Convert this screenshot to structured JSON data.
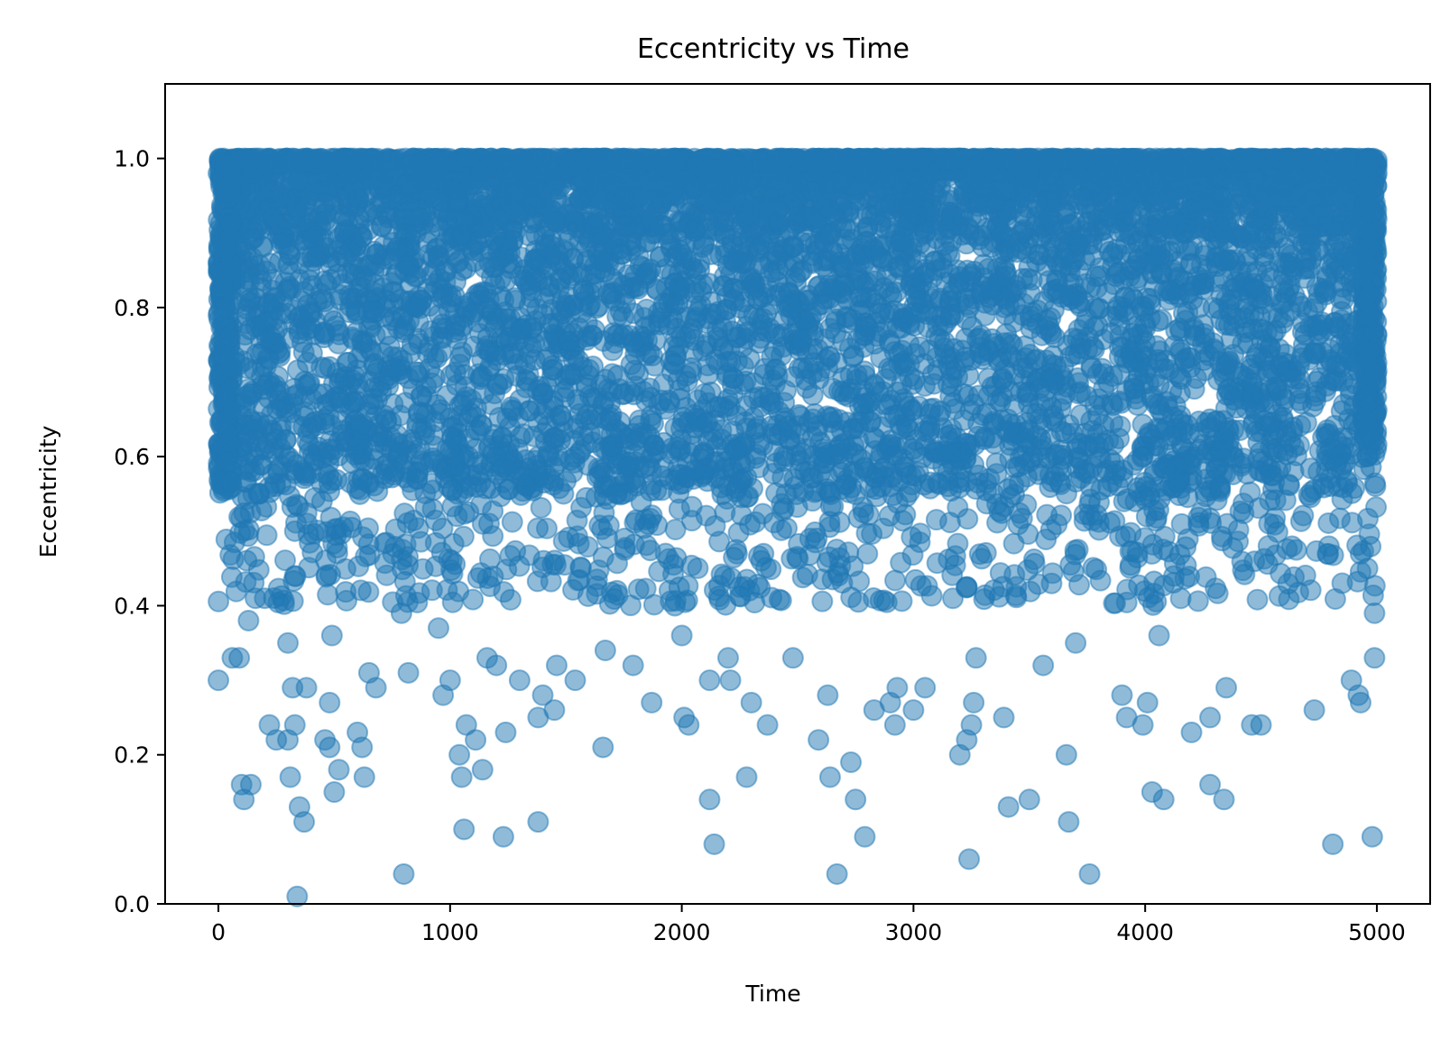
{
  "chart_data": {
    "type": "scatter",
    "title": "Eccentricity vs Time",
    "xlabel": "Time",
    "ylabel": "Eccentricity",
    "xlim": [
      -230,
      5230
    ],
    "ylim": [
      0.0,
      1.1
    ],
    "xticks": [
      0,
      1000,
      2000,
      3000,
      4000,
      5000
    ],
    "xtick_labels": [
      "0",
      "1000",
      "2000",
      "3000",
      "4000",
      "5000"
    ],
    "yticks": [
      0.0,
      0.2,
      0.4,
      0.6,
      0.8,
      1.0
    ],
    "ytick_labels": [
      "0.0",
      "0.2",
      "0.4",
      "0.6",
      "0.8",
      "1.0"
    ],
    "grid": false,
    "marker_color": "#1f77b4",
    "marker_alpha": 0.5,
    "series": [
      {
        "x": [
          0,
          100,
          200,
          300,
          400,
          500,
          600,
          700,
          800,
          900,
          1000,
          1100,
          1200,
          1300,
          1400,
          1500,
          1600,
          1700,
          1800,
          1900,
          2000,
          2100,
          2200,
          2300,
          2400,
          2500,
          2600,
          2700,
          2800,
          2900,
          3000,
          3100,
          3200,
          3300,
          3400,
          3500,
          3600,
          3700,
          3800,
          3900,
          4000,
          4100,
          4200,
          4300,
          4400,
          4500,
          4600,
          4700,
          4800,
          4900,
          5000,
          20,
          150,
          330,
          520,
          760,
          1030,
          1380,
          1720,
          2050,
          2450,
          2800,
          3150,
          3480,
          3800,
          4150,
          4500,
          4830,
          4990
        ],
        "y": [
          0.98,
          0.97,
          0.95,
          0.93,
          0.99,
          0.96,
          0.94,
          0.97,
          0.98,
          0.95,
          0.96,
          0.93,
          0.99,
          0.97,
          0.94,
          0.98,
          0.95,
          0.96,
          0.97,
          0.93,
          0.98,
          0.94,
          0.96,
          0.99,
          0.95,
          0.97,
          0.93,
          0.96,
          0.98,
          0.94,
          0.97,
          0.95,
          0.99,
          0.96,
          0.93,
          0.98,
          0.94,
          0.97,
          0.95,
          0.96,
          0.99,
          0.93,
          0.97,
          0.94,
          0.98,
          0.95,
          0.96,
          0.97,
          0.93,
          0.99,
          0.98,
          0.6,
          0.55,
          0.5,
          0.62,
          0.58,
          0.52,
          0.6,
          0.55,
          0.57,
          0.6,
          0.58,
          0.56,
          0.59,
          0.6,
          0.57,
          0.58,
          0.6,
          0.62
        ]
      }
    ],
    "sparse_points": [
      [
        0,
        0.3
      ],
      [
        60,
        0.33
      ],
      [
        90,
        0.33
      ],
      [
        100,
        0.16
      ],
      [
        110,
        0.14
      ],
      [
        140,
        0.16
      ],
      [
        130,
        0.38
      ],
      [
        160,
        0.41
      ],
      [
        200,
        0.41
      ],
      [
        220,
        0.24
      ],
      [
        250,
        0.22
      ],
      [
        300,
        0.22
      ],
      [
        300,
        0.35
      ],
      [
        310,
        0.17
      ],
      [
        320,
        0.29
      ],
      [
        330,
        0.24
      ],
      [
        350,
        0.13
      ],
      [
        340,
        0.01
      ],
      [
        370,
        0.11
      ],
      [
        380,
        0.29
      ],
      [
        460,
        0.22
      ],
      [
        480,
        0.21
      ],
      [
        480,
        0.27
      ],
      [
        490,
        0.36
      ],
      [
        500,
        0.15
      ],
      [
        520,
        0.18
      ],
      [
        600,
        0.23
      ],
      [
        620,
        0.21
      ],
      [
        630,
        0.17
      ],
      [
        650,
        0.31
      ],
      [
        680,
        0.29
      ],
      [
        800,
        0.04
      ],
      [
        820,
        0.31
      ],
      [
        790,
        0.39
      ],
      [
        950,
        0.37
      ],
      [
        970,
        0.28
      ],
      [
        1000,
        0.3
      ],
      [
        1040,
        0.2
      ],
      [
        1050,
        0.17
      ],
      [
        1060,
        0.1
      ],
      [
        1070,
        0.24
      ],
      [
        1110,
        0.22
      ],
      [
        1140,
        0.18
      ],
      [
        1160,
        0.33
      ],
      [
        1200,
        0.32
      ],
      [
        1230,
        0.09
      ],
      [
        1240,
        0.23
      ],
      [
        1300,
        0.3
      ],
      [
        1380,
        0.11
      ],
      [
        1380,
        0.25
      ],
      [
        1400,
        0.28
      ],
      [
        1450,
        0.26
      ],
      [
        1460,
        0.32
      ],
      [
        1540,
        0.3
      ],
      [
        1660,
        0.21
      ],
      [
        1670,
        0.34
      ],
      [
        1790,
        0.32
      ],
      [
        1870,
        0.27
      ],
      [
        1930,
        0.47
      ],
      [
        1970,
        0.4
      ],
      [
        2000,
        0.36
      ],
      [
        2010,
        0.25
      ],
      [
        2030,
        0.24
      ],
      [
        2120,
        0.14
      ],
      [
        2140,
        0.08
      ],
      [
        2120,
        0.3
      ],
      [
        2200,
        0.33
      ],
      [
        2210,
        0.3
      ],
      [
        2280,
        0.17
      ],
      [
        2300,
        0.27
      ],
      [
        2370,
        0.24
      ],
      [
        2480,
        0.33
      ],
      [
        2590,
        0.22
      ],
      [
        2630,
        0.28
      ],
      [
        2640,
        0.17
      ],
      [
        2670,
        0.04
      ],
      [
        2730,
        0.19
      ],
      [
        2750,
        0.14
      ],
      [
        2790,
        0.09
      ],
      [
        2830,
        0.26
      ],
      [
        2900,
        0.27
      ],
      [
        2920,
        0.24
      ],
      [
        2930,
        0.29
      ],
      [
        3000,
        0.26
      ],
      [
        3050,
        0.29
      ],
      [
        3200,
        0.2
      ],
      [
        3230,
        0.22
      ],
      [
        3240,
        0.06
      ],
      [
        3250,
        0.24
      ],
      [
        3260,
        0.27
      ],
      [
        3270,
        0.33
      ],
      [
        3390,
        0.25
      ],
      [
        3410,
        0.13
      ],
      [
        3500,
        0.14
      ],
      [
        3560,
        0.32
      ],
      [
        3660,
        0.2
      ],
      [
        3670,
        0.11
      ],
      [
        3700,
        0.35
      ],
      [
        3760,
        0.04
      ],
      [
        3900,
        0.28
      ],
      [
        3920,
        0.25
      ],
      [
        3990,
        0.24
      ],
      [
        4010,
        0.27
      ],
      [
        4030,
        0.15
      ],
      [
        4080,
        0.14
      ],
      [
        4060,
        0.36
      ],
      [
        4200,
        0.23
      ],
      [
        4280,
        0.16
      ],
      [
        4280,
        0.25
      ],
      [
        4340,
        0.14
      ],
      [
        4350,
        0.29
      ],
      [
        4460,
        0.24
      ],
      [
        4500,
        0.24
      ],
      [
        4730,
        0.26
      ],
      [
        4810,
        0.08
      ],
      [
        4890,
        0.3
      ],
      [
        4920,
        0.28
      ],
      [
        4980,
        0.09
      ],
      [
        4990,
        0.33
      ],
      [
        4990,
        0.39
      ],
      [
        4930,
        0.27
      ]
    ]
  }
}
